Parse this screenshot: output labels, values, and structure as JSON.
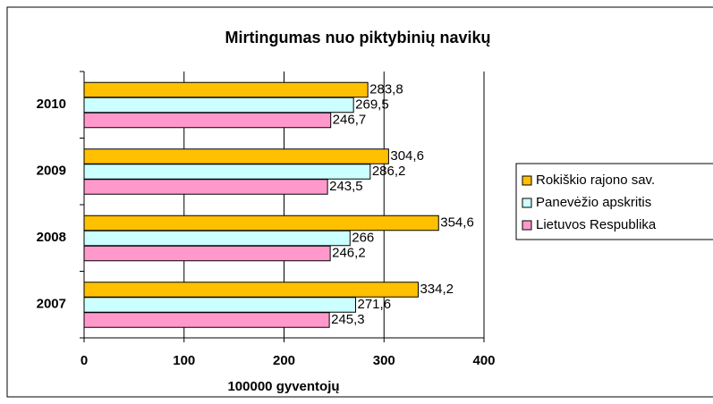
{
  "chart_data": {
    "type": "hbar",
    "title": "Mirtingumas nuo piktybinių navikų",
    "xlabel": "100000 gyventojų",
    "categories": [
      "2007",
      "2008",
      "2009",
      "2010"
    ],
    "series": [
      {
        "name": "Rokiškio rajono sav.",
        "color": "#ffc000",
        "values": [
          334.2,
          354.6,
          304.6,
          283.8
        ],
        "value_labels": [
          "334,2",
          "354,6",
          "304,6",
          "283,8"
        ]
      },
      {
        "name": "Panevėžio apskritis",
        "color": "#ccffff",
        "values": [
          271.6,
          266,
          286.2,
          269.5
        ],
        "value_labels": [
          "271,6",
          "266",
          "286,2",
          "269,5"
        ]
      },
      {
        "name": "Lietuvos Respublika",
        "color": "#ff99cc",
        "values": [
          245.3,
          246.2,
          243.5,
          246.7
        ],
        "value_labels": [
          "245,3",
          "246,2",
          "243,5",
          "246,7"
        ]
      }
    ],
    "xlim": [
      0,
      400
    ],
    "xticks": [
      0,
      100,
      200,
      300,
      400
    ],
    "grid": true,
    "legend": "right"
  }
}
